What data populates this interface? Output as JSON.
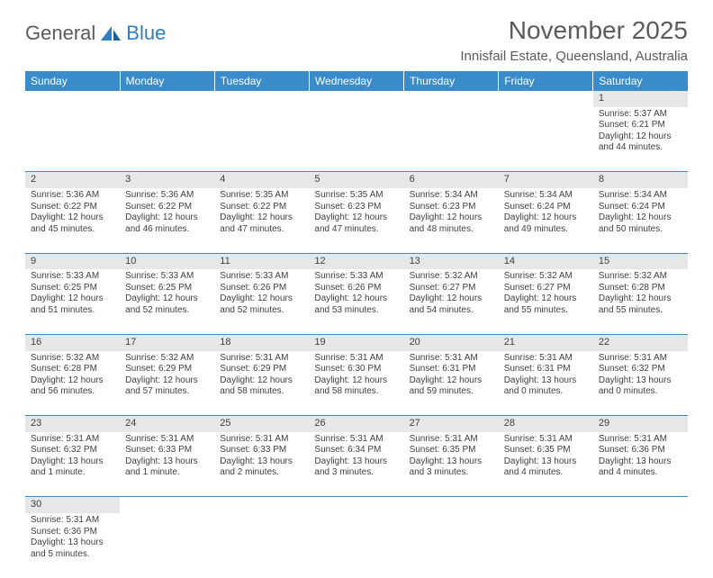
{
  "logo": {
    "text1": "General",
    "text2": "Blue"
  },
  "title": "November 2025",
  "location": "Innisfail Estate, Queensland, Australia",
  "colors": {
    "header_bg": "#3a8bc9",
    "header_text": "#ffffff",
    "daynum_bg": "#e7e7e7",
    "text": "#404040",
    "rule": "#3a8bc9",
    "logo_gray": "#5b5b5b",
    "logo_blue": "#2f7fc2"
  },
  "weekdays": [
    "Sunday",
    "Monday",
    "Tuesday",
    "Wednesday",
    "Thursday",
    "Friday",
    "Saturday"
  ],
  "weeks": [
    [
      null,
      null,
      null,
      null,
      null,
      null,
      {
        "n": "1",
        "sr": "Sunrise: 5:37 AM",
        "ss": "Sunset: 6:21 PM",
        "dl": "Daylight: 12 hours and 44 minutes."
      }
    ],
    [
      {
        "n": "2",
        "sr": "Sunrise: 5:36 AM",
        "ss": "Sunset: 6:22 PM",
        "dl": "Daylight: 12 hours and 45 minutes."
      },
      {
        "n": "3",
        "sr": "Sunrise: 5:36 AM",
        "ss": "Sunset: 6:22 PM",
        "dl": "Daylight: 12 hours and 46 minutes."
      },
      {
        "n": "4",
        "sr": "Sunrise: 5:35 AM",
        "ss": "Sunset: 6:22 PM",
        "dl": "Daylight: 12 hours and 47 minutes."
      },
      {
        "n": "5",
        "sr": "Sunrise: 5:35 AM",
        "ss": "Sunset: 6:23 PM",
        "dl": "Daylight: 12 hours and 47 minutes."
      },
      {
        "n": "6",
        "sr": "Sunrise: 5:34 AM",
        "ss": "Sunset: 6:23 PM",
        "dl": "Daylight: 12 hours and 48 minutes."
      },
      {
        "n": "7",
        "sr": "Sunrise: 5:34 AM",
        "ss": "Sunset: 6:24 PM",
        "dl": "Daylight: 12 hours and 49 minutes."
      },
      {
        "n": "8",
        "sr": "Sunrise: 5:34 AM",
        "ss": "Sunset: 6:24 PM",
        "dl": "Daylight: 12 hours and 50 minutes."
      }
    ],
    [
      {
        "n": "9",
        "sr": "Sunrise: 5:33 AM",
        "ss": "Sunset: 6:25 PM",
        "dl": "Daylight: 12 hours and 51 minutes."
      },
      {
        "n": "10",
        "sr": "Sunrise: 5:33 AM",
        "ss": "Sunset: 6:25 PM",
        "dl": "Daylight: 12 hours and 52 minutes."
      },
      {
        "n": "11",
        "sr": "Sunrise: 5:33 AM",
        "ss": "Sunset: 6:26 PM",
        "dl": "Daylight: 12 hours and 52 minutes."
      },
      {
        "n": "12",
        "sr": "Sunrise: 5:33 AM",
        "ss": "Sunset: 6:26 PM",
        "dl": "Daylight: 12 hours and 53 minutes."
      },
      {
        "n": "13",
        "sr": "Sunrise: 5:32 AM",
        "ss": "Sunset: 6:27 PM",
        "dl": "Daylight: 12 hours and 54 minutes."
      },
      {
        "n": "14",
        "sr": "Sunrise: 5:32 AM",
        "ss": "Sunset: 6:27 PM",
        "dl": "Daylight: 12 hours and 55 minutes."
      },
      {
        "n": "15",
        "sr": "Sunrise: 5:32 AM",
        "ss": "Sunset: 6:28 PM",
        "dl": "Daylight: 12 hours and 55 minutes."
      }
    ],
    [
      {
        "n": "16",
        "sr": "Sunrise: 5:32 AM",
        "ss": "Sunset: 6:28 PM",
        "dl": "Daylight: 12 hours and 56 minutes."
      },
      {
        "n": "17",
        "sr": "Sunrise: 5:32 AM",
        "ss": "Sunset: 6:29 PM",
        "dl": "Daylight: 12 hours and 57 minutes."
      },
      {
        "n": "18",
        "sr": "Sunrise: 5:31 AM",
        "ss": "Sunset: 6:29 PM",
        "dl": "Daylight: 12 hours and 58 minutes."
      },
      {
        "n": "19",
        "sr": "Sunrise: 5:31 AM",
        "ss": "Sunset: 6:30 PM",
        "dl": "Daylight: 12 hours and 58 minutes."
      },
      {
        "n": "20",
        "sr": "Sunrise: 5:31 AM",
        "ss": "Sunset: 6:31 PM",
        "dl": "Daylight: 12 hours and 59 minutes."
      },
      {
        "n": "21",
        "sr": "Sunrise: 5:31 AM",
        "ss": "Sunset: 6:31 PM",
        "dl": "Daylight: 13 hours and 0 minutes."
      },
      {
        "n": "22",
        "sr": "Sunrise: 5:31 AM",
        "ss": "Sunset: 6:32 PM",
        "dl": "Daylight: 13 hours and 0 minutes."
      }
    ],
    [
      {
        "n": "23",
        "sr": "Sunrise: 5:31 AM",
        "ss": "Sunset: 6:32 PM",
        "dl": "Daylight: 13 hours and 1 minute."
      },
      {
        "n": "24",
        "sr": "Sunrise: 5:31 AM",
        "ss": "Sunset: 6:33 PM",
        "dl": "Daylight: 13 hours and 1 minute."
      },
      {
        "n": "25",
        "sr": "Sunrise: 5:31 AM",
        "ss": "Sunset: 6:33 PM",
        "dl": "Daylight: 13 hours and 2 minutes."
      },
      {
        "n": "26",
        "sr": "Sunrise: 5:31 AM",
        "ss": "Sunset: 6:34 PM",
        "dl": "Daylight: 13 hours and 3 minutes."
      },
      {
        "n": "27",
        "sr": "Sunrise: 5:31 AM",
        "ss": "Sunset: 6:35 PM",
        "dl": "Daylight: 13 hours and 3 minutes."
      },
      {
        "n": "28",
        "sr": "Sunrise: 5:31 AM",
        "ss": "Sunset: 6:35 PM",
        "dl": "Daylight: 13 hours and 4 minutes."
      },
      {
        "n": "29",
        "sr": "Sunrise: 5:31 AM",
        "ss": "Sunset: 6:36 PM",
        "dl": "Daylight: 13 hours and 4 minutes."
      }
    ],
    [
      {
        "n": "30",
        "sr": "Sunrise: 5:31 AM",
        "ss": "Sunset: 6:36 PM",
        "dl": "Daylight: 13 hours and 5 minutes."
      },
      null,
      null,
      null,
      null,
      null,
      null
    ]
  ]
}
